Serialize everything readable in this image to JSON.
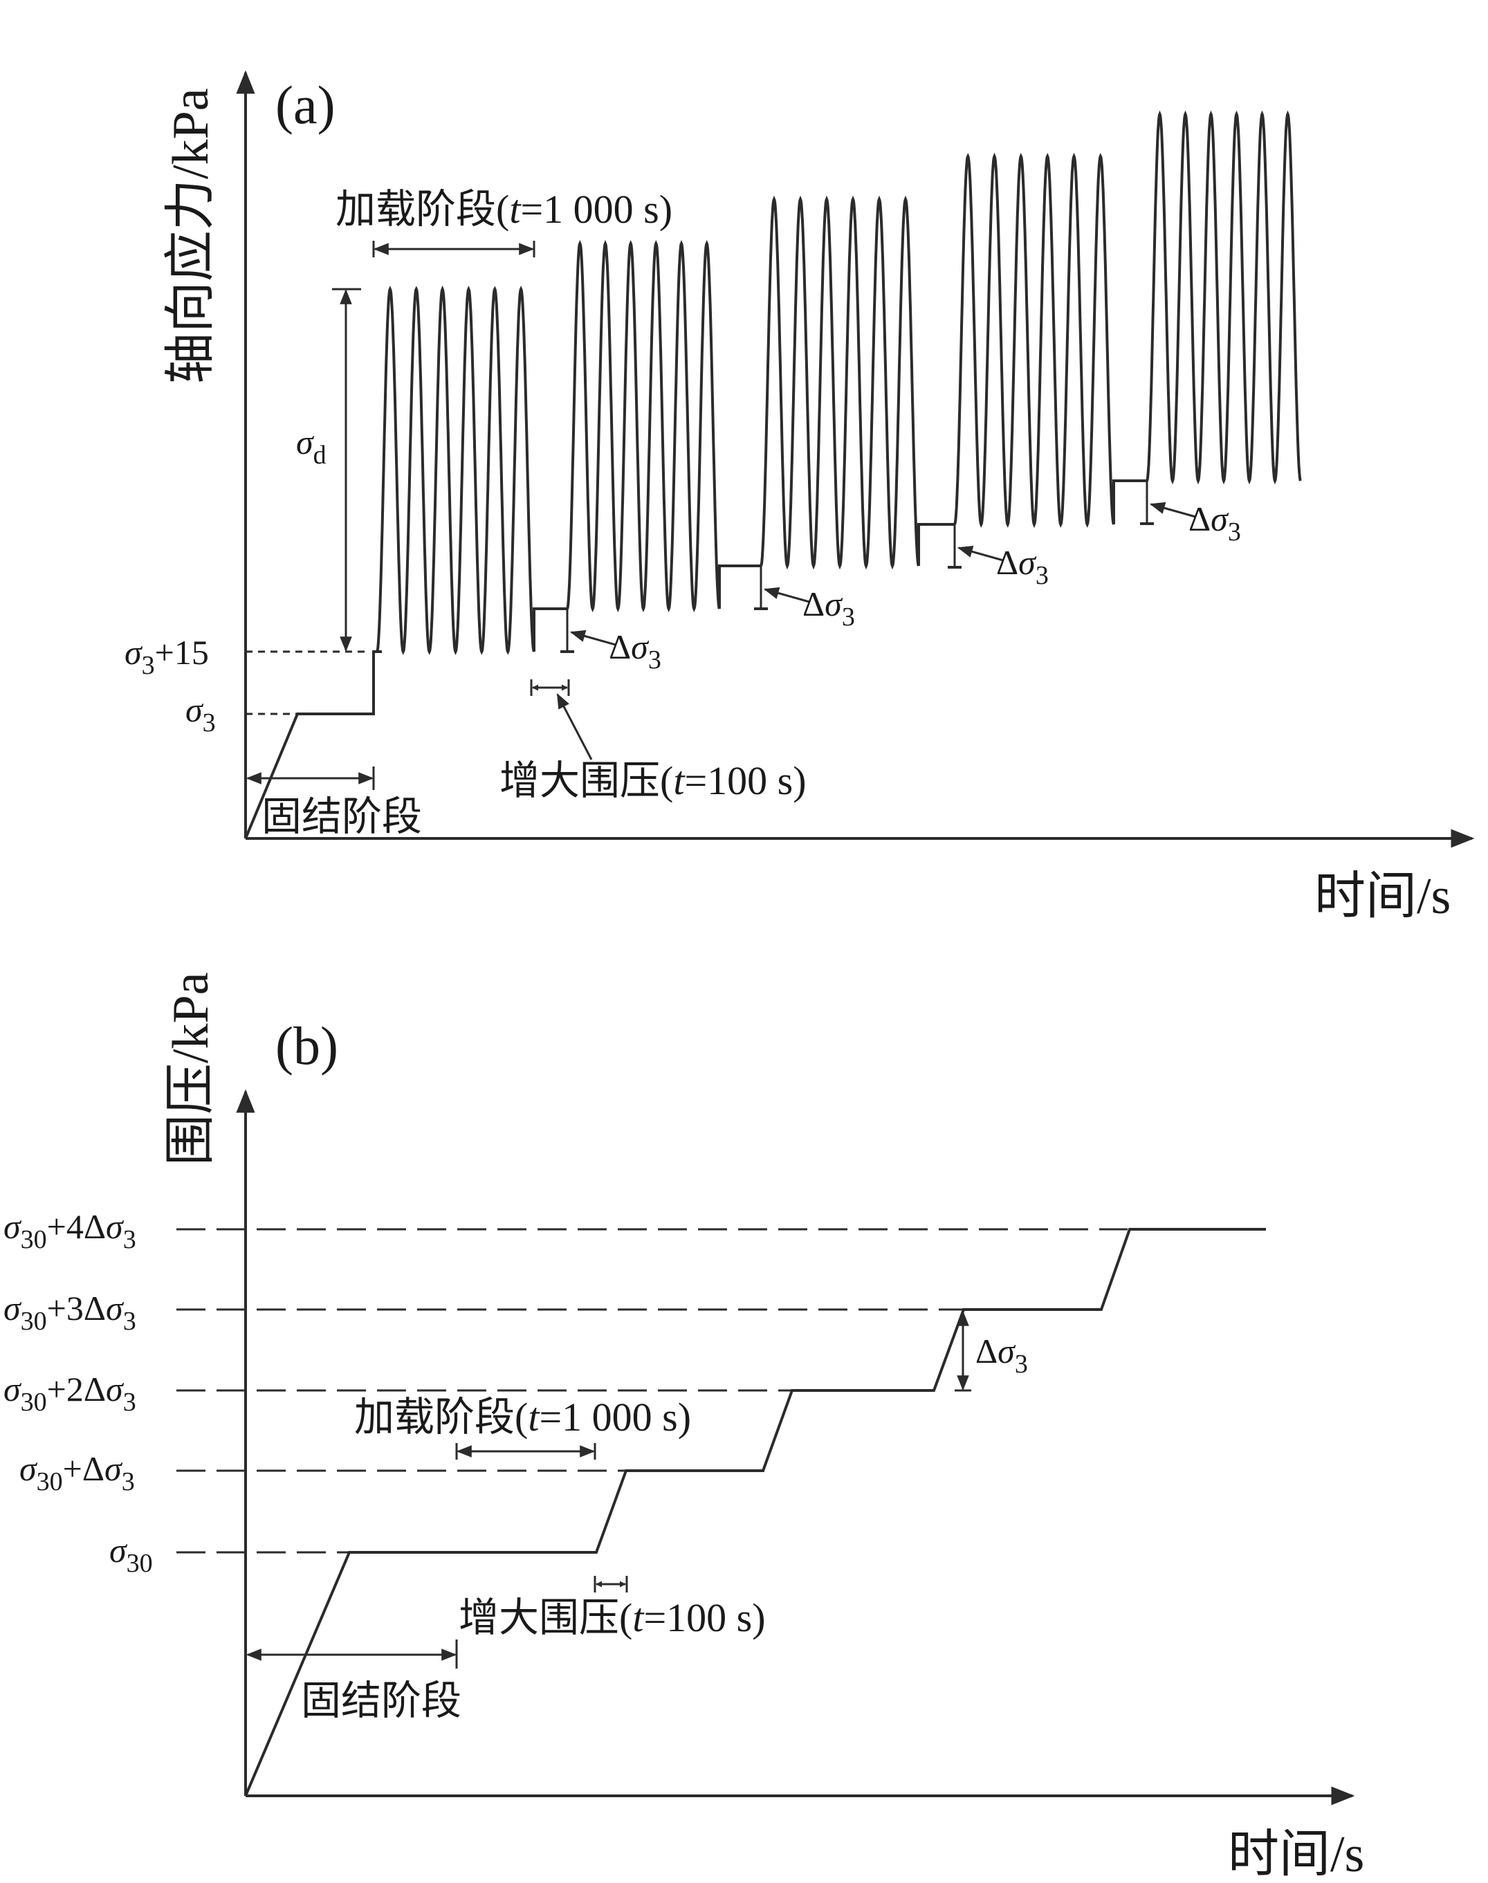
{
  "panel_a": {
    "label": "(a)",
    "y_axis_title": "轴向应力/kPa",
    "x_axis_title": "时间/s",
    "y_ticks": [
      {
        "base": "σ",
        "sub": "3",
        "tail": "+15"
      },
      {
        "base": "σ",
        "sub": "3",
        "tail": ""
      }
    ],
    "sigma_d": {
      "base": "σ",
      "sub": "d"
    },
    "loading_label": {
      "pre": "加载阶段(",
      "it": "t",
      "post": "=1 000 s)"
    },
    "increase_label": {
      "pre": "增大围压(",
      "it": "t",
      "post": "=100 s)"
    },
    "consolidation_label": "固结阶段",
    "delta_sigma": {
      "delta": "Δ",
      "base": "σ",
      "sub": "3"
    }
  },
  "panel_b": {
    "label": "(b)",
    "y_axis_title": "围压/kPa",
    "x_axis_title": "时间/s",
    "y_ticks": [
      {
        "base": "σ",
        "sub": "30",
        "tail": "+4Δ",
        "base2": "σ",
        "sub2": "3"
      },
      {
        "base": "σ",
        "sub": "30",
        "tail": "+3Δ",
        "base2": "σ",
        "sub2": "3"
      },
      {
        "base": "σ",
        "sub": "30",
        "tail": "+2Δ",
        "base2": "σ",
        "sub2": "3"
      },
      {
        "base": "σ",
        "sub": "30",
        "tail": "+Δ",
        "base2": "σ",
        "sub2": "3"
      },
      {
        "base": "σ",
        "sub": "30",
        "tail": "",
        "base2": "",
        "sub2": ""
      }
    ],
    "loading_label": {
      "pre": "加载阶段(",
      "it": "t",
      "post": "=1 000 s)"
    },
    "increase_label": {
      "pre": "增大围压(",
      "it": "t",
      "post": "=100 s)"
    },
    "consolidation_label": "固结阶段",
    "delta_sigma": {
      "delta": "Δ",
      "base": "σ",
      "sub": "3"
    }
  },
  "style": {
    "line_color": "#2b2b2b"
  }
}
